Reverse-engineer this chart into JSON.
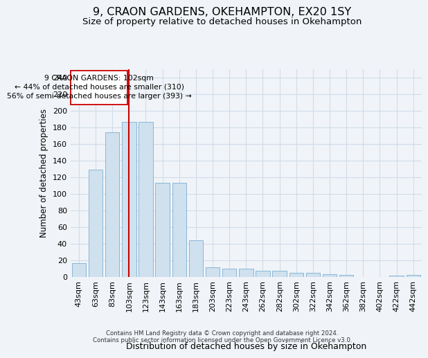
{
  "title_line1": "9, CRAON GARDENS, OKEHAMPTON, EX20 1SY",
  "title_line2": "Size of property relative to detached houses in Okehampton",
  "xlabel": "Distribution of detached houses by size in Okehampton",
  "ylabel": "Number of detached properties",
  "footer_line1": "Contains HM Land Registry data © Crown copyright and database right 2024.",
  "footer_line2": "Contains public sector information licensed under the Open Government Licence v3.0.",
  "categories": [
    "43sqm",
    "63sqm",
    "83sqm",
    "103sqm",
    "123sqm",
    "143sqm",
    "163sqm",
    "183sqm",
    "203sqm",
    "223sqm",
    "243sqm",
    "262sqm",
    "282sqm",
    "302sqm",
    "322sqm",
    "342sqm",
    "362sqm",
    "382sqm",
    "402sqm",
    "422sqm",
    "442sqm"
  ],
  "values": [
    16,
    129,
    174,
    186,
    186,
    113,
    113,
    44,
    11,
    10,
    10,
    7,
    7,
    5,
    5,
    3,
    2,
    0,
    0,
    1,
    2
  ],
  "bar_color": "#cfe0ee",
  "bar_edge_color": "#7bafd4",
  "grid_color": "#d0dce8",
  "property_bin_index": 3,
  "annotation_text_line1": "9 CRAON GARDENS: 102sqm",
  "annotation_text_line2": "← 44% of detached houses are smaller (310)",
  "annotation_text_line3": "56% of semi-detached houses are larger (393) →",
  "vline_color": "#cc0000",
  "annotation_box_edge_color": "#cc0000",
  "ylim": [
    0,
    250
  ],
  "yticks": [
    0,
    20,
    40,
    60,
    80,
    100,
    120,
    140,
    160,
    180,
    200,
    220,
    240
  ],
  "background_color": "#f0f4f8"
}
